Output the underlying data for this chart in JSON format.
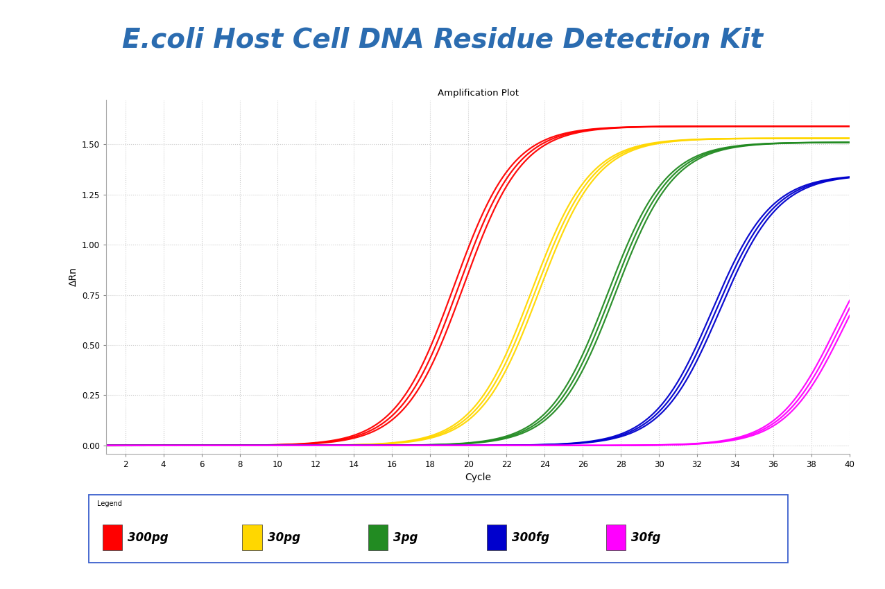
{
  "title": "E.coli Host Cell DNA Residue Detection Kit",
  "plot_title": "Amplification Plot",
  "xlabel": "Cycle",
  "ylabel": "ΔRn",
  "xlim": [
    1,
    40
  ],
  "ylim": [
    -0.04,
    1.72
  ],
  "xticks": [
    2,
    4,
    6,
    8,
    10,
    12,
    14,
    16,
    18,
    20,
    22,
    24,
    26,
    28,
    30,
    32,
    34,
    36,
    38,
    40
  ],
  "yticks": [
    0.0,
    0.25,
    0.5,
    0.75,
    1.0,
    1.25,
    1.5
  ],
  "series": [
    {
      "label": "300pg",
      "color": "#FF0000",
      "midpoint": 19.5,
      "steepness": 0.65,
      "plateau": 1.59,
      "offsets": [
        -0.25,
        0.0,
        0.25
      ]
    },
    {
      "label": "30pg",
      "color": "#FFD700",
      "midpoint": 23.5,
      "steepness": 0.65,
      "plateau": 1.53,
      "offsets": [
        -0.2,
        0.0,
        0.2
      ]
    },
    {
      "label": "3pg",
      "color": "#228B22",
      "midpoint": 27.5,
      "steepness": 0.65,
      "plateau": 1.51,
      "offsets": [
        -0.2,
        0.0,
        0.2
      ]
    },
    {
      "label": "300fg",
      "color": "#0000CD",
      "midpoint": 33.0,
      "steepness": 0.65,
      "plateau": 1.35,
      "offsets": [
        -0.2,
        0.0,
        0.2
      ]
    },
    {
      "label": "30fg",
      "color": "#FF00FF",
      "midpoint": 39.5,
      "steepness": 0.65,
      "plateau": 1.18,
      "offsets": [
        -0.2,
        0.0,
        0.2
      ]
    }
  ],
  "title_color": "#2B6CB0",
  "title_fontsize": 28,
  "background_color": "#FFFFFF",
  "legend_box_color": "#3A5FCD",
  "grid_color": "#CCCCCC"
}
